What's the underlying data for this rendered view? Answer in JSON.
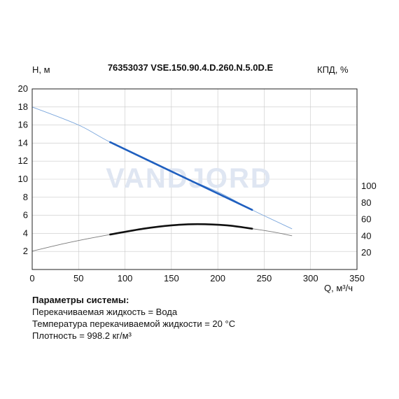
{
  "chart_data": {
    "type": "line",
    "title": "76353037 VSE.150.90.4.D.260.N.5.0D.E",
    "left_axis_label": "H, м",
    "right_axis_label": "КПД, %",
    "x_axis_label": "Q, м³/ч",
    "xlim": [
      0,
      350
    ],
    "ylim_left": [
      0,
      20
    ],
    "ylim_right": [
      0,
      100
    ],
    "x_ticks": [
      "0",
      "50",
      "100",
      "150",
      "200",
      "250",
      "300",
      "350"
    ],
    "y_ticks_left": [
      "2",
      "4",
      "6",
      "8",
      "10",
      "12",
      "14",
      "16",
      "18",
      "20"
    ],
    "y_ticks_right": [
      "20",
      "40",
      "60",
      "80",
      "100"
    ],
    "grid": true,
    "series": [
      {
        "key": "head",
        "axis": "left",
        "color": "#1f5fbf",
        "full_curve": {
          "x": [
            0,
            50,
            84,
            150,
            200,
            237,
            280
          ],
          "y": [
            18.0,
            16.0,
            14.1,
            10.8,
            8.6,
            6.6,
            4.5
          ]
        },
        "work_range": {
          "x": [
            84,
            237
          ],
          "y": [
            14.1,
            6.6
          ]
        }
      },
      {
        "key": "efficiency",
        "axis": "right",
        "color": "#111111",
        "full_curve": {
          "x": [
            0,
            30,
            60,
            84,
            120,
            150,
            178,
            210,
            237,
            260,
            280
          ],
          "y": [
            22,
            30,
            37,
            42,
            49,
            53,
            54.5,
            53,
            49,
            45,
            40.5
          ]
        },
        "work_range": {
          "x": [
            84,
            120,
            150,
            178,
            210,
            237
          ],
          "y": [
            42,
            49,
            53,
            54.5,
            53,
            49
          ]
        }
      }
    ]
  },
  "watermark": "VANDJORD",
  "params": {
    "heading": "Параметры системы:",
    "lines": [
      "Перекачиваемая жидкость = Вода",
      "Температура перекачиваемой жидкости = 20 °C",
      "Плотность = 998.2 кг/м³"
    ]
  }
}
